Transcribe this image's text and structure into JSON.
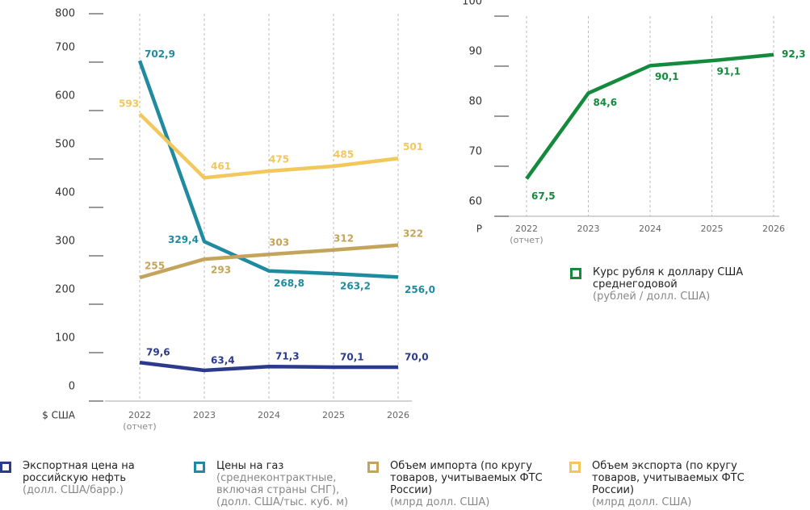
{
  "chart_data": [
    {
      "type": "line",
      "categories": [
        "2022",
        "2023",
        "2024",
        "2025",
        "2026"
      ],
      "category_notes": [
        "(отчет)",
        null,
        null,
        null,
        null
      ],
      "y_unit": "$ США",
      "ylim": [
        0,
        800
      ],
      "yticks": [
        0,
        100,
        200,
        300,
        400,
        500,
        600,
        700,
        800
      ],
      "series": [
        {
          "name": "Экспортная цена на российскую нефть",
          "unit": "(долл. США/барр.)",
          "color": "#2b3a8c",
          "values": [
            79.6,
            63.4,
            71.3,
            70.1,
            70.0
          ],
          "value_labels": [
            "79,6",
            "63,4",
            "71,3",
            "70,1",
            "70,0"
          ]
        },
        {
          "name": "Цены на газ",
          "unit": "(среднеконтрактные, включая страны СНГ), (долл. США/тыс. куб. м)",
          "color": "#1f8aa0",
          "values": [
            702.9,
            329.4,
            268.8,
            263.2,
            256.0
          ],
          "value_labels": [
            "702,9",
            "329,4",
            "268,8",
            "263,2",
            "256,0"
          ]
        },
        {
          "name": "Объем импорта (по кругу товаров, учитываемых ФТС России)",
          "unit": "(млрд долл. США)",
          "color": "#c4a45a",
          "values": [
            255,
            293,
            303,
            312,
            322
          ]
        },
        {
          "name": "Объем экспорта (по кругу товаров, учитываемых ФТС России)",
          "unit": "(млрд долл. США)",
          "color": "#f2c75c",
          "values": [
            593,
            461,
            475,
            485,
            501
          ]
        }
      ]
    },
    {
      "type": "line",
      "categories": [
        "2022",
        "2023",
        "2024",
        "2025",
        "2026"
      ],
      "category_notes": [
        "(отчет)",
        null,
        null,
        null,
        null
      ],
      "y_unit": "Р",
      "ylim": [
        60,
        100
      ],
      "yticks": [
        60,
        70,
        80,
        90,
        100
      ],
      "series": [
        {
          "name": "Курс рубля к доллару США среднегодовой",
          "unit": "(рублей / долл. США)",
          "color": "#138a3c",
          "values": [
            67.5,
            84.6,
            90.1,
            91.1,
            92.3
          ],
          "value_labels": [
            "67,5",
            "84,6",
            "90,1",
            "91,1",
            "92,3"
          ]
        }
      ]
    }
  ]
}
